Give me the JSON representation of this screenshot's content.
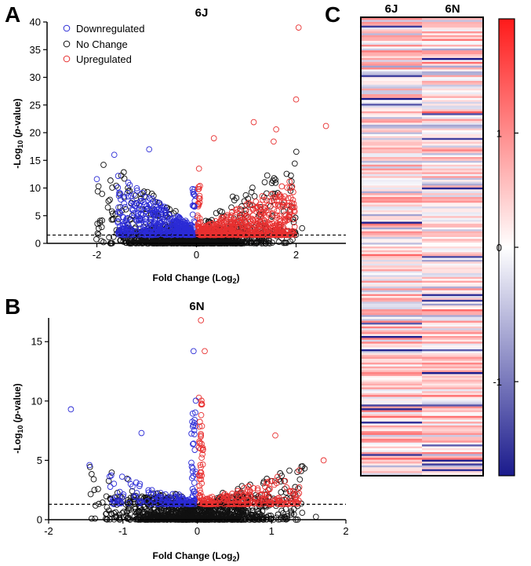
{
  "figure": {
    "panels": [
      {
        "letter": "A"
      },
      {
        "letter": "B"
      },
      {
        "letter": "C"
      }
    ]
  },
  "legend": {
    "entries": [
      {
        "label": "Downregulated",
        "color": "#2b2bd6"
      },
      {
        "label": "No Change",
        "color": "#111111"
      },
      {
        "label": "Upregulated",
        "color": "#e83030"
      }
    ]
  },
  "chart_data": [
    {
      "type": "scatter",
      "panel": "A",
      "title": "6J",
      "xlabel_main": "Fold Change (Log",
      "xlabel_sub": "2",
      "xlabel_end": ")",
      "ylabel_pre": "-Log",
      "ylabel_sub": "10",
      "ylabel_italic": "p",
      "ylabel_post": "-value)",
      "ylabel_open": " (",
      "xlim": [
        -3,
        3
      ],
      "ylim": [
        0,
        40
      ],
      "xticks": [
        -2,
        0,
        2
      ],
      "yticks": [
        0,
        5,
        10,
        15,
        20,
        25,
        30,
        35,
        40
      ],
      "threshold": 1.5,
      "highlighted_points": [
        {
          "x": 2.05,
          "y": 39.0,
          "group": "Upregulated"
        },
        {
          "x": 2.0,
          "y": 26.0,
          "group": "Upregulated"
        },
        {
          "x": 2.6,
          "y": 21.2,
          "group": "Upregulated"
        },
        {
          "x": 1.15,
          "y": 21.9,
          "group": "Upregulated"
        },
        {
          "x": 1.6,
          "y": 20.6,
          "group": "Upregulated"
        },
        {
          "x": 0.35,
          "y": 19.0,
          "group": "Upregulated"
        },
        {
          "x": 1.55,
          "y": 18.4,
          "group": "Upregulated"
        },
        {
          "x": -0.95,
          "y": 17.0,
          "group": "Downregulated"
        },
        {
          "x": -1.65,
          "y": 16.0,
          "group": "Downregulated"
        },
        {
          "x": -2.0,
          "y": 11.6,
          "group": "Downregulated"
        },
        {
          "x": 0.05,
          "y": 13.5,
          "group": "Upregulated"
        }
      ]
    },
    {
      "type": "scatter",
      "panel": "B",
      "title": "6N",
      "xlabel_main": "Fold Change (Log",
      "xlabel_sub": "2",
      "xlabel_end": ")",
      "ylabel_pre": "-Log",
      "ylabel_sub": "10",
      "ylabel_italic": "p",
      "ylabel_post": "-value)",
      "ylabel_open": " (",
      "xlim": [
        -2,
        2
      ],
      "ylim": [
        0,
        17
      ],
      "xticks": [
        -2,
        -1,
        0,
        1,
        2
      ],
      "yticks": [
        0,
        5,
        10,
        15
      ],
      "threshold": 1.3,
      "highlighted_points": [
        {
          "x": 0.05,
          "y": 16.8,
          "group": "Upregulated"
        },
        {
          "x": 0.1,
          "y": 14.2,
          "group": "Upregulated"
        },
        {
          "x": -0.05,
          "y": 14.2,
          "group": "Downregulated"
        },
        {
          "x": -1.7,
          "y": 9.3,
          "group": "Downregulated"
        },
        {
          "x": -0.75,
          "y": 7.3,
          "group": "Downregulated"
        },
        {
          "x": 1.7,
          "y": 5.0,
          "group": "Upregulated"
        },
        {
          "x": 1.05,
          "y": 7.1,
          "group": "Upregulated"
        },
        {
          "x": -1.45,
          "y": 4.6,
          "group": "Downregulated"
        }
      ]
    },
    {
      "type": "heatmap",
      "panel": "C",
      "columns": [
        "6J",
        "6N"
      ],
      "row_count": 240,
      "colorbar_ticks": [
        1,
        0,
        -1
      ],
      "colorbar_tick_labels": [
        "1",
        "0",
        "-1"
      ],
      "value_range": [
        -1.7,
        2.0
      ],
      "colors": {
        "low": "#1a1a8c",
        "mid": "#ffffff",
        "high": "#ff1a1a"
      }
    }
  ]
}
